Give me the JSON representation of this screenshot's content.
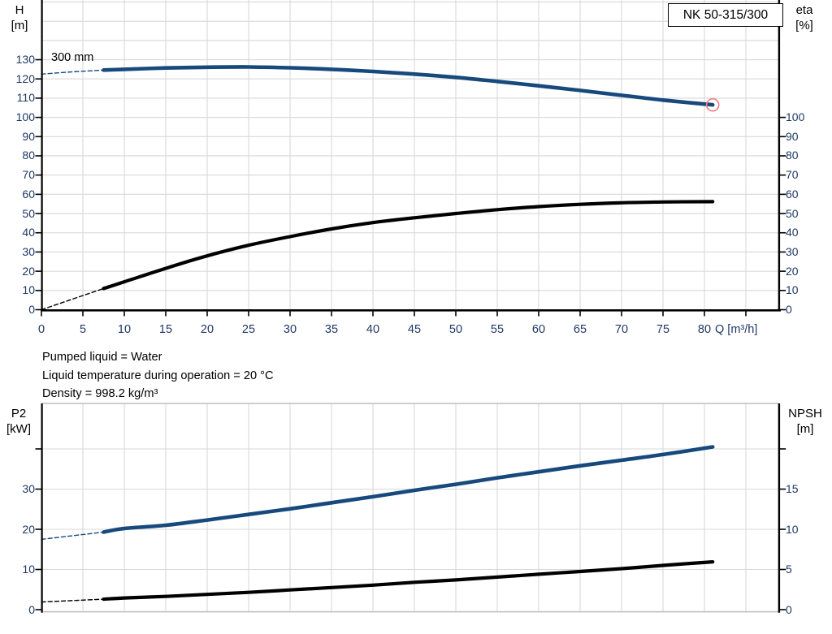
{
  "info_lines": [
    "Pumped liquid = Water",
    "Liquid temperature during operation = 20 °C",
    "Density = 998.2 kg/m³"
  ],
  "colors": {
    "curve_blue": "#17497C",
    "curve_black": "#000000",
    "marker_red": "#EF7F7F",
    "grid": "#D8D8D8",
    "axis": "#000000",
    "tick_text": "#1F3864"
  },
  "chart_data": [
    {
      "type": "line",
      "title": "NK 50-315/300",
      "xlabel": "Q [m³/h]",
      "annotations": [
        "300 mm"
      ],
      "x_range": [
        0,
        89
      ],
      "y_left": {
        "label": "H",
        "unit": "[m]",
        "range": [
          0,
          161
        ],
        "ticks": [
          [
            0,
            "0"
          ],
          [
            10,
            "10"
          ],
          [
            20,
            "20"
          ],
          [
            30,
            "30"
          ],
          [
            40,
            "40"
          ],
          [
            50,
            "50"
          ],
          [
            60,
            "60"
          ],
          [
            70,
            "70"
          ],
          [
            80,
            "80"
          ],
          [
            90,
            "90"
          ],
          [
            100,
            "100"
          ],
          [
            110,
            "110"
          ],
          [
            120,
            "120"
          ],
          [
            130,
            "130"
          ]
        ],
        "grid_max": 160
      },
      "y_right": {
        "label": "eta",
        "unit": "[%]",
        "range": [
          0,
          100
        ],
        "ticks": [
          [
            0,
            "0"
          ],
          [
            10,
            "10"
          ],
          [
            20,
            "20"
          ],
          [
            30,
            "30"
          ],
          [
            40,
            "40"
          ],
          [
            50,
            "50"
          ],
          [
            60,
            "60"
          ],
          [
            70,
            "70"
          ],
          [
            80,
            "80"
          ],
          [
            90,
            "90"
          ],
          [
            100,
            "100"
          ]
        ]
      },
      "x_ticks": [
        [
          0,
          "0"
        ],
        [
          5,
          "5"
        ],
        [
          10,
          "10"
        ],
        [
          15,
          "15"
        ],
        [
          20,
          "20"
        ],
        [
          25,
          "25"
        ],
        [
          30,
          "30"
        ],
        [
          35,
          "35"
        ],
        [
          40,
          "40"
        ],
        [
          45,
          "45"
        ],
        [
          50,
          "50"
        ],
        [
          55,
          "55"
        ],
        [
          60,
          "60"
        ],
        [
          65,
          "65"
        ],
        [
          70,
          "70"
        ],
        [
          75,
          "75"
        ],
        [
          80,
          "80"
        ],
        [
          85,
          ""
        ]
      ],
      "series": [
        {
          "name": "head-curve-dashed",
          "axis": "left",
          "style": "dashed",
          "color": "curve_blue",
          "x": [
            0,
            3.5,
            7.5
          ],
          "y": [
            122.5,
            123.6,
            124.6
          ]
        },
        {
          "name": "head-curve",
          "axis": "left",
          "style": "solid",
          "color": "curve_blue",
          "x": [
            7.5,
            10,
            15,
            20,
            25,
            30,
            35,
            40,
            45,
            50,
            55,
            60,
            65,
            70,
            75,
            81
          ],
          "y": [
            124.6,
            125.0,
            125.7,
            126.1,
            126.2,
            125.8,
            125.0,
            123.9,
            122.5,
            120.8,
            118.7,
            116.4,
            114.0,
            111.5,
            109.0,
            106.5
          ]
        },
        {
          "name": "eta-curve-dashed",
          "axis": "right",
          "style": "dashed",
          "color": "curve_black",
          "x": [
            0,
            7.5
          ],
          "y": [
            0,
            11
          ]
        },
        {
          "name": "eta-curve",
          "axis": "right",
          "style": "solid",
          "color": "curve_black",
          "x": [
            7.5,
            10,
            15,
            20,
            25,
            30,
            35,
            40,
            45,
            50,
            55,
            60,
            65,
            70,
            75,
            81
          ],
          "y": [
            11,
            14.5,
            21.5,
            28,
            33.5,
            38,
            42,
            45.3,
            47.8,
            50,
            52,
            53.6,
            54.8,
            55.6,
            56,
            56.2
          ]
        }
      ],
      "marker": {
        "name": "duty-point",
        "x": 81,
        "y": 106.5,
        "axis": "left",
        "color": "marker_red"
      }
    },
    {
      "type": "line",
      "xlabel": "",
      "x_range": [
        0,
        89
      ],
      "y_left": {
        "label": "P2",
        "unit": "[kW]",
        "range": [
          0,
          51
        ],
        "ticks": [
          [
            0,
            "0"
          ],
          [
            10,
            "10"
          ],
          [
            20,
            "20"
          ],
          [
            30,
            "30"
          ],
          [
            40,
            ""
          ]
        ]
      },
      "y_right": {
        "label": "NPSH",
        "unit": "[m]",
        "range": [
          0,
          25.5
        ],
        "ticks": [
          [
            0,
            "0"
          ],
          [
            5,
            "5"
          ],
          [
            10,
            "10"
          ],
          [
            15,
            "15"
          ],
          [
            20,
            ""
          ]
        ]
      },
      "x_ticks": [],
      "series": [
        {
          "name": "p2-curve-dashed",
          "axis": "left",
          "style": "dashed",
          "color": "curve_blue",
          "x": [
            0,
            7.5
          ],
          "y": [
            17.5,
            19.3
          ]
        },
        {
          "name": "p2-curve",
          "axis": "left",
          "style": "solid",
          "color": "curve_blue",
          "x": [
            7.5,
            10,
            15,
            20,
            25,
            30,
            35,
            40,
            45,
            50,
            55,
            60,
            65,
            70,
            75,
            81
          ],
          "y": [
            19.3,
            20.2,
            21.0,
            22.3,
            23.7,
            25.1,
            26.6,
            28.1,
            29.7,
            31.2,
            32.8,
            34.3,
            35.8,
            37.2,
            38.6,
            40.5
          ]
        },
        {
          "name": "npsh-curve-dashed",
          "axis": "right",
          "style": "dashed",
          "color": "curve_black",
          "x": [
            0,
            7.5
          ],
          "y": [
            0.95,
            1.3
          ]
        },
        {
          "name": "npsh-curve",
          "axis": "right",
          "style": "solid",
          "color": "curve_black",
          "x": [
            7.5,
            10,
            15,
            20,
            25,
            30,
            35,
            40,
            45,
            50,
            55,
            60,
            65,
            70,
            75,
            81
          ],
          "y": [
            1.3,
            1.45,
            1.65,
            1.9,
            2.15,
            2.45,
            2.75,
            3.05,
            3.4,
            3.7,
            4.05,
            4.4,
            4.75,
            5.1,
            5.5,
            5.95
          ]
        }
      ]
    }
  ]
}
